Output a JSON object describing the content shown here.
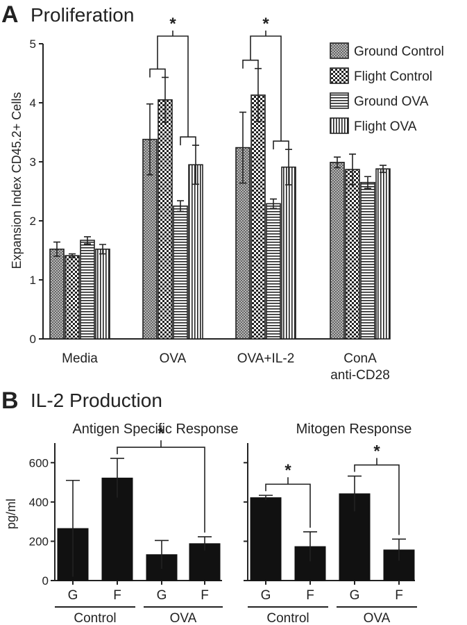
{
  "panelA": {
    "letter": "A",
    "title": "Proliferation",
    "chart_data": {
      "type": "bar",
      "ylabel": "Expansion Index CD45.2+ Cells",
      "ylim": [
        0,
        5
      ],
      "yticks": [
        "0",
        "1",
        "2",
        "3",
        "4",
        "5"
      ],
      "categories": [
        "Media",
        "OVA",
        "OVA+IL-2",
        "ConA\nanti-CD28"
      ],
      "category_lines": [
        [
          "Media"
        ],
        [
          "OVA"
        ],
        [
          "OVA+IL-2"
        ],
        [
          "ConA",
          "anti-CD28"
        ]
      ],
      "legend_position": "top-right",
      "series": [
        {
          "name": "Ground Control",
          "pattern": "crosshatch",
          "values": [
            1.52,
            3.38,
            3.24,
            2.99
          ],
          "errors": [
            0.12,
            0.6,
            0.6,
            0.09
          ]
        },
        {
          "name": "Flight Control",
          "pattern": "checker",
          "values": [
            1.41,
            4.05,
            4.13,
            2.87
          ],
          "errors": [
            0.03,
            0.38,
            0.45,
            0.26
          ]
        },
        {
          "name": "Ground OVA",
          "pattern": "horizontal",
          "values": [
            1.67,
            2.25,
            2.29,
            2.65
          ],
          "errors": [
            0.06,
            0.09,
            0.08,
            0.1
          ]
        },
        {
          "name": "Flight OVA",
          "pattern": "vertical",
          "values": [
            1.52,
            2.95,
            2.91,
            2.88
          ],
          "errors": [
            0.08,
            0.33,
            0.3,
            0.06
          ]
        }
      ],
      "significance": [
        {
          "groupIndex": 1,
          "label": "*"
        },
        {
          "groupIndex": 2,
          "label": "*"
        }
      ]
    }
  },
  "panelB": {
    "letter": "B",
    "title": "IL-2 Production",
    "ylabel": "pg/ml",
    "chart_data": [
      {
        "type": "bar",
        "title": "Antigen Specific Response",
        "ylim": [
          0,
          700
        ],
        "yticks": [
          "0",
          "200",
          "400",
          "600"
        ],
        "categories": [
          "G",
          "F",
          "G",
          "F"
        ],
        "groups": [
          "Control",
          "OVA"
        ],
        "values": [
          265,
          522,
          132,
          188
        ],
        "errors": [
          245,
          100,
          72,
          35
        ],
        "significance": [
          {
            "from": 1,
            "to": 3,
            "label": "*"
          }
        ]
      },
      {
        "type": "bar",
        "title": "Mitogen Response",
        "ylim": [
          0,
          700
        ],
        "yticks": [
          "0",
          "200",
          "400",
          "600"
        ],
        "categories": [
          "G",
          "F",
          "G",
          "F"
        ],
        "groups": [
          "Control",
          "OVA"
        ],
        "values": [
          422,
          173,
          442,
          156
        ],
        "errors": [
          12,
          75,
          90,
          55
        ],
        "significance": [
          {
            "from": 0,
            "to": 1,
            "label": "*"
          },
          {
            "from": 2,
            "to": 3,
            "label": "*"
          }
        ]
      }
    ]
  }
}
